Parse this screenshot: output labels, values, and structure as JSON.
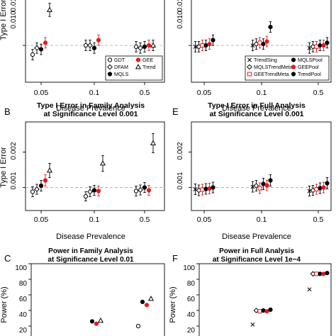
{
  "chart_data": [
    {
      "panel": "A",
      "type": "scatter",
      "title": "",
      "xlabel": "Disease Prevalence",
      "ylabel": "Type I Error",
      "categories": [
        "0.05",
        "0.1",
        "0.5"
      ],
      "ylim": [
        0.0072,
        0.0155
      ],
      "yticks": [
        "0.010",
        "0.015"
      ],
      "reference_line": 0.01,
      "legend": {
        "position": "bottom-right",
        "entries": [
          {
            "label": "GDT",
            "marker": "circle-open",
            "color": "#000000"
          },
          {
            "label": "GEE",
            "marker": "circle-filled",
            "color": "#e41a1c"
          },
          {
            "label": "DFAM",
            "marker": "diamond-open",
            "color": "#000000"
          },
          {
            "label": "Trend",
            "marker": "triangle-open",
            "color": "#000000"
          },
          {
            "label": "MQLS",
            "marker": "circle-filled",
            "color": "#000000"
          }
        ]
      },
      "series": [
        {
          "name": "GDT",
          "marker": "circle-open",
          "color": "#000000",
          "values": [
            0.0093,
            0.01,
            0.0099
          ],
          "err": [
            0.0004,
            0.0004,
            0.0004
          ]
        },
        {
          "name": "DFAM",
          "marker": "diamond-open",
          "color": "#000000",
          "values": [
            0.0098,
            0.01,
            0.0098
          ],
          "err": [
            0.0004,
            0.0004,
            0.0004
          ]
        },
        {
          "name": "MQLS",
          "marker": "circle-filled",
          "color": "#000000",
          "values": [
            0.0097,
            0.0098,
            0.0099
          ],
          "err": [
            0.0004,
            0.0004,
            0.0004
          ]
        },
        {
          "name": "GEE",
          "marker": "circle-filled",
          "color": "#e41a1c",
          "values": [
            0.0102,
            0.0104,
            0.01
          ],
          "err": [
            0.0004,
            0.0004,
            0.0004
          ]
        },
        {
          "name": "Trend",
          "marker": "triangle-open",
          "color": "#000000",
          "values": [
            0.0127,
            0.0143,
            0.01
          ],
          "err": [
            0.0005,
            0.0005,
            0.0004
          ]
        }
      ]
    },
    {
      "panel": "D",
      "type": "scatter",
      "title": "",
      "xlabel": "",
      "ylabel": "",
      "categories": [
        "0.05",
        "0.1",
        "0.5"
      ],
      "ylim": [
        0.0072,
        0.0155
      ],
      "yticks": [
        "0.010",
        "0.015"
      ],
      "reference_line": 0.01,
      "legend": {
        "position": "bottom-right",
        "entries": [
          {
            "label": "TrendSing",
            "marker": "cross",
            "color": "#000000"
          },
          {
            "label": "MQLSPool",
            "marker": "circle-filled",
            "color": "#000000"
          },
          {
            "label": "MQLSTrendMeta",
            "marker": "diamond-open",
            "color": "#000000"
          },
          {
            "label": "GEEPool",
            "marker": "circle-filled",
            "color": "#e41a1c"
          },
          {
            "label": "GEETrendMeta",
            "marker": "square-open",
            "color": "#e41a1c"
          },
          {
            "label": "TrendPool",
            "marker": "circle-filled",
            "color": "#000000"
          }
        ]
      },
      "series": [
        {
          "name": "TrendSing",
          "marker": "cross",
          "color": "#000000",
          "values": [
            0.0099,
            0.01,
            0.0098
          ],
          "err": [
            0.0004,
            0.0004,
            0.0004
          ]
        },
        {
          "name": "MQLSTrendMeta",
          "marker": "diamond-open",
          "color": "#000000",
          "values": [
            0.0099,
            0.0101,
            0.0099
          ],
          "err": [
            0.0004,
            0.0004,
            0.0004
          ]
        },
        {
          "name": "GEETrendMeta",
          "marker": "square-open",
          "color": "#e41a1c",
          "values": [
            0.01,
            0.0102,
            0.0099
          ],
          "err": [
            0.0004,
            0.0004,
            0.0004
          ]
        },
        {
          "name": "MQLSPool",
          "marker": "circle-filled",
          "color": "#000000",
          "values": [
            0.01,
            0.0101,
            0.01
          ],
          "err": [
            0.0004,
            0.0004,
            0.0004
          ]
        },
        {
          "name": "GEEPool",
          "marker": "circle-filled",
          "color": "#e41a1c",
          "values": [
            0.0101,
            0.0103,
            0.01
          ],
          "err": [
            0.0004,
            0.0004,
            0.0004
          ]
        },
        {
          "name": "TrendPool",
          "marker": "circle-filled",
          "color": "#000000",
          "values": [
            0.0104,
            0.0114,
            0.0102
          ],
          "err": [
            0.0004,
            0.0004,
            0.0004
          ]
        }
      ]
    },
    {
      "panel": "B",
      "type": "scatter",
      "title": "Type I Error in Family Analysis\nat Significance Level 0.001",
      "xlabel": "Disease Prevalence",
      "ylabel": "Type I Error",
      "categories": [
        "0.05",
        "0.1",
        "0.5"
      ],
      "ylim": [
        0.00035,
        0.00285
      ],
      "yticks": [
        "0.001",
        "0.002"
      ],
      "reference_line": 0.001,
      "series": [
        {
          "name": "GDT",
          "marker": "circle-open",
          "color": "#000000",
          "values": [
            0.00088,
            0.00075,
            0.0009
          ],
          "err": [
            0.00014,
            0.00013,
            0.00014
          ]
        },
        {
          "name": "DFAM",
          "marker": "diamond-open",
          "color": "#000000",
          "values": [
            0.00095,
            0.00088,
            0.00093
          ],
          "err": [
            0.00014,
            0.00014,
            0.00014
          ]
        },
        {
          "name": "MQLS",
          "marker": "circle-filled",
          "color": "#000000",
          "values": [
            0.00105,
            0.00092,
            0.001
          ],
          "err": [
            0.00015,
            0.00014,
            0.00014
          ]
        },
        {
          "name": "GEE",
          "marker": "circle-filled",
          "color": "#e41a1c",
          "values": [
            0.0012,
            0.0009,
            0.00092
          ],
          "err": [
            0.00016,
            0.00014,
            0.00014
          ]
        },
        {
          "name": "Trend",
          "marker": "triangle-open",
          "color": "#000000",
          "values": [
            0.00148,
            0.00168,
            0.00225
          ],
          "err": [
            0.0002,
            0.00022,
            0.00027
          ]
        }
      ]
    },
    {
      "panel": "E",
      "type": "scatter",
      "title": "Type I Error in Full Analysis\nat Significance Level 0.001",
      "xlabel": "Disease Prevalence",
      "ylabel": "",
      "categories": [
        "0.05",
        "0.1",
        "0.5"
      ],
      "ylim": [
        0.00035,
        0.00285
      ],
      "yticks": [
        "0.001",
        "0.002"
      ],
      "reference_line": 0.001,
      "series": [
        {
          "name": "TrendSing",
          "marker": "cross",
          "color": "#000000",
          "values": [
            0.00095,
            0.00102,
            0.0009
          ],
          "err": [
            0.00015,
            0.00015,
            0.00014
          ]
        },
        {
          "name": "MQLSTrendMeta",
          "marker": "diamond-open",
          "color": "#000000",
          "values": [
            0.00092,
            0.00105,
            0.00092
          ],
          "err": [
            0.00015,
            0.00015,
            0.00014
          ]
        },
        {
          "name": "GEETrendMeta",
          "marker": "square-open",
          "color": "#e41a1c",
          "values": [
            0.00094,
            0.00098,
            0.00095
          ],
          "err": [
            0.00015,
            0.00015,
            0.00014
          ]
        },
        {
          "name": "MQLSPool",
          "marker": "circle-filled",
          "color": "#000000",
          "values": [
            0.00096,
            0.0011,
            0.00098
          ],
          "err": [
            0.00015,
            0.00016,
            0.00015
          ]
        },
        {
          "name": "GEEPool",
          "marker": "circle-filled",
          "color": "#e41a1c",
          "values": [
            0.00097,
            0.00106,
            0.001
          ],
          "err": [
            0.00015,
            0.00015,
            0.00015
          ]
        },
        {
          "name": "TrendPool",
          "marker": "circle-filled",
          "color": "#000000",
          "values": [
            0.001,
            0.0012,
            0.00112
          ],
          "err": [
            0.00015,
            0.00016,
            0.00016
          ]
        }
      ]
    },
    {
      "panel": "C",
      "type": "scatter",
      "title": "Power in Family Analysis\nat Significance Level 0.01",
      "xlabel": "",
      "ylabel": "Power (%)",
      "categories": [
        "0.05",
        "0.1",
        "0.5"
      ],
      "ylim": [
        0,
        100
      ],
      "yticks": [
        "20",
        "40",
        "60",
        "80",
        "100"
      ],
      "series": [
        {
          "name": "GDT",
          "marker": "circle-open",
          "color": "#000000",
          "values": [
            null,
            null,
            20
          ]
        },
        {
          "name": "MQLS",
          "marker": "circle-filled",
          "color": "#000000",
          "values": [
            null,
            26,
            51
          ]
        },
        {
          "name": "GEE",
          "marker": "circle-filled",
          "color": "#e41a1c",
          "values": [
            null,
            23,
            47
          ]
        },
        {
          "name": "Trend",
          "marker": "triangle-open",
          "color": "#000000",
          "values": [
            null,
            27,
            55
          ]
        }
      ]
    },
    {
      "panel": "F",
      "type": "scatter",
      "title": "Power in Full Analysis\nat Significance Level 1e−4",
      "xlabel": "",
      "ylabel": "Power (%)",
      "categories": [
        "0.05",
        "0.1",
        "0.5"
      ],
      "ylim": [
        0,
        100
      ],
      "yticks": [
        "20",
        "40",
        "60",
        "80",
        "100"
      ],
      "series": [
        {
          "name": "TrendSing",
          "marker": "cross",
          "color": "#000000",
          "values": [
            null,
            22,
            67
          ]
        },
        {
          "name": "MQLSTrendMeta",
          "marker": "diamond-open",
          "color": "#000000",
          "values": [
            null,
            40,
            87
          ]
        },
        {
          "name": "GEETrendMeta",
          "marker": "square-open",
          "color": "#e41a1c",
          "values": [
            null,
            39,
            87
          ]
        },
        {
          "name": "MQLSPool",
          "marker": "circle-filled",
          "color": "#000000",
          "values": [
            null,
            40,
            87
          ]
        },
        {
          "name": "GEEPool",
          "marker": "circle-filled",
          "color": "#e41a1c",
          "values": [
            null,
            39,
            87
          ]
        },
        {
          "name": "TrendPool",
          "marker": "circle-filled",
          "color": "#000000",
          "values": [
            null,
            41,
            88
          ]
        }
      ]
    }
  ],
  "panels": {
    "a": {
      "ytick1": "0.015",
      "ytick2": "0.010",
      "ylabel": "Type I Error",
      "xlabel": "Disease Prevalence",
      "xticks": [
        "0.05",
        "0.1",
        "0.5"
      ]
    },
    "d": {
      "ytick1": "0.015",
      "ytick2": "0.010",
      "xlabel": "Disease Prevalence",
      "xticks": [
        "0.05",
        "0.1",
        "0.5"
      ]
    },
    "b": {
      "letter": "B",
      "title1": "Type I Error in Family Analysis",
      "title2": "at Significance Level 0.001",
      "ytick1": "0.002",
      "ytick2": "0.001",
      "ylabel": "Type I Error",
      "xlabel": "Disease Prevalence",
      "xticks": [
        "0.05",
        "0.1",
        "0.5"
      ]
    },
    "e": {
      "letter": "E",
      "title1": "Type I Error in Full Analysis",
      "title2": "at Significance Level 0.001",
      "ytick1": "0.002",
      "ytick2": "0.001",
      "xlabel": "Disease Prevalence",
      "xticks": [
        "0.05",
        "0.1",
        "0.5"
      ]
    },
    "c": {
      "letter": "C",
      "title1": "Power in Family Analysis",
      "title2": "at Significance Level 0.01",
      "ylabel": "Power (%)",
      "yticks": [
        "100",
        "80",
        "60",
        "40",
        "20"
      ]
    },
    "f": {
      "letter": "F",
      "title1": "Power in Full Analysis",
      "title2": "at Significance Level 1e−4",
      "ylabel": "Power (%)",
      "yticks": [
        "100",
        "80",
        "60",
        "40",
        "20"
      ]
    }
  },
  "colors": {
    "red": "#e41a1c",
    "black": "#000000",
    "reference_line": "#b0b0b0"
  }
}
